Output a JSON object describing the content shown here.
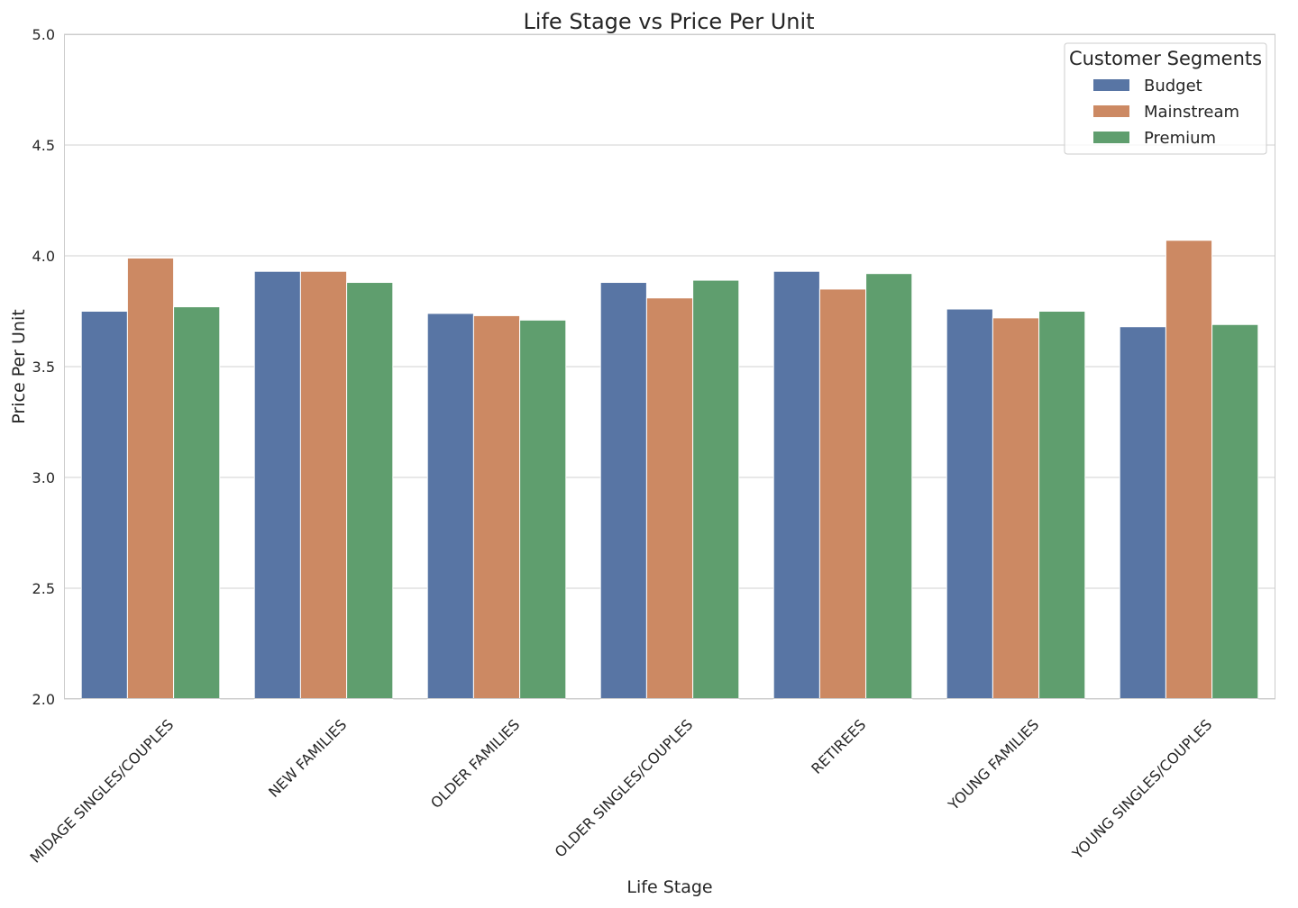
{
  "chart_data": {
    "type": "bar",
    "title": "Life Stage vs Price Per Unit",
    "xlabel": "Life Stage",
    "ylabel": "Price Per Unit",
    "ylim": [
      2.0,
      5.0
    ],
    "yticks": [
      "2.0",
      "2.5",
      "3.0",
      "3.5",
      "4.0",
      "4.5",
      "5.0"
    ],
    "grid": "horizontal",
    "categories": [
      "MIDAGE SINGLES/COUPLES",
      "NEW FAMILIES",
      "OLDER FAMILIES",
      "OLDER SINGLES/COUPLES",
      "RETIREES",
      "YOUNG FAMILIES",
      "YOUNG SINGLES/COUPLES"
    ],
    "legend": {
      "title": "Customer Segments",
      "placement": "top-right"
    },
    "series": [
      {
        "name": "Budget",
        "color": "#5875a4",
        "values": [
          3.75,
          3.93,
          3.74,
          3.88,
          3.93,
          3.76,
          3.68
        ]
      },
      {
        "name": "Mainstream",
        "color": "#cc8963",
        "values": [
          3.99,
          3.93,
          3.73,
          3.81,
          3.85,
          3.72,
          4.07
        ]
      },
      {
        "name": "Premium",
        "color": "#5f9e6e",
        "values": [
          3.77,
          3.88,
          3.71,
          3.89,
          3.92,
          3.75,
          3.69
        ]
      }
    ]
  }
}
